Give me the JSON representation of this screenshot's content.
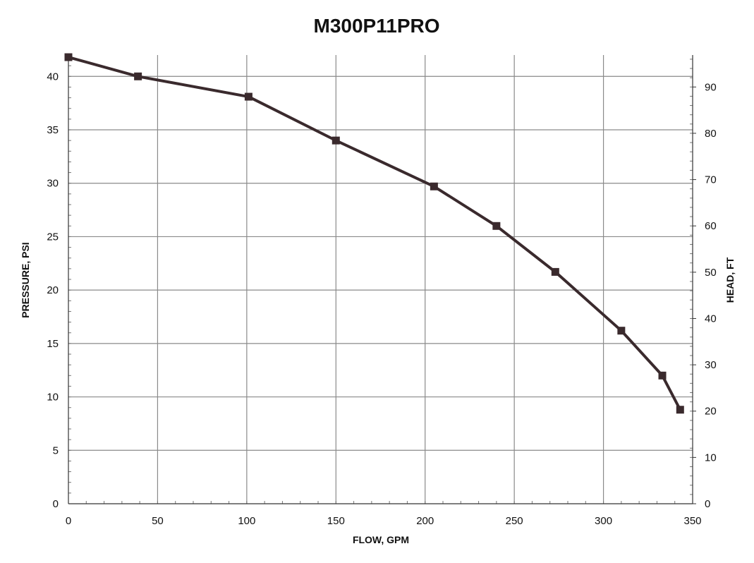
{
  "chart_data": {
    "type": "line",
    "title": "M300P11PRO",
    "xlabel": "FLOW, GPM",
    "ylabel": "PRESSURE, PSI",
    "y2label": "HEAD, FT",
    "xlim": [
      0,
      350
    ],
    "ylim": [
      0,
      42
    ],
    "y2lim": [
      0,
      96.9
    ],
    "x_ticks": [
      "0",
      "50",
      "100",
      "150",
      "200",
      "250",
      "300",
      "350"
    ],
    "y_ticks": [
      "0",
      "5",
      "10",
      "15",
      "20",
      "25",
      "30",
      "35",
      "40"
    ],
    "y2_ticks": [
      "0",
      "10",
      "20",
      "30",
      "40",
      "50",
      "60",
      "70",
      "80",
      "90"
    ],
    "grid": true,
    "series": [
      {
        "x": [
          0,
          39,
          101,
          150,
          205,
          240,
          273,
          310,
          333,
          343
        ],
        "y": [
          41.8,
          40.0,
          38.1,
          34.0,
          29.7,
          26.0,
          21.7,
          16.2,
          12.0,
          8.8
        ]
      }
    ],
    "colors": {
      "series": "#3a2a2d",
      "grid": "#8a8a8a"
    }
  }
}
